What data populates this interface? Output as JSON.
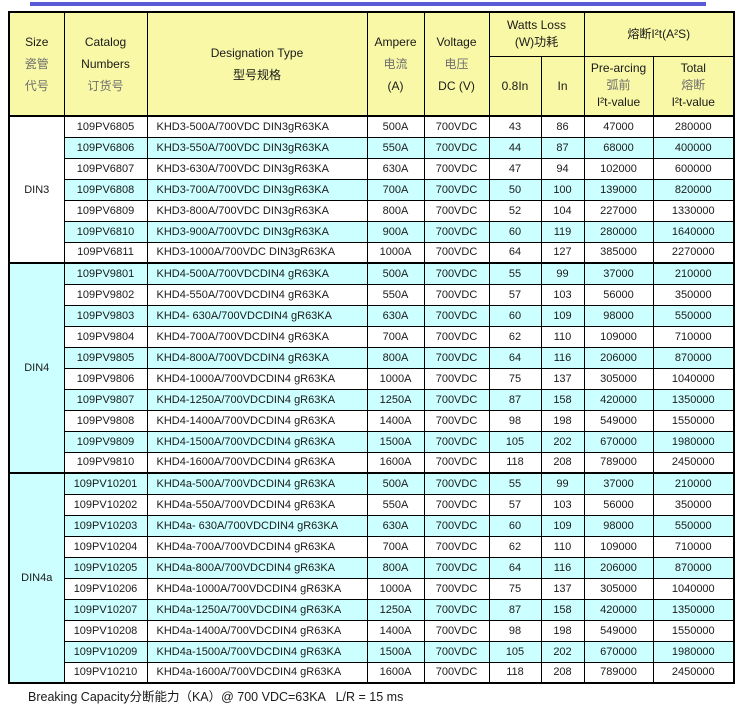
{
  "page": {
    "top_rule_color": "#5B5BD6",
    "header_bg_color": "#F8F8A6",
    "stripe_bg_color": "#CCFFFF",
    "border_color": "#000000"
  },
  "table": {
    "header": {
      "size": {
        "en": "Size",
        "zh1": "瓷管",
        "zh2": "代号"
      },
      "catalog": {
        "en1": "Catalog",
        "en2": "Numbers",
        "zh": "订货号"
      },
      "designation": {
        "en": "Designation Type",
        "zh": "型号规格"
      },
      "ampere": {
        "en": "Ampere",
        "zh": "电流",
        "unit": "(A)"
      },
      "voltage": {
        "en": "Voltage",
        "zh": "电压",
        "unit": "DC (V)"
      },
      "watts": {
        "title1": "Watts Loss",
        "title2": "(W)功耗",
        "sub1": "0.8In",
        "sub2": "In"
      },
      "i2t": {
        "title": "熔断I²t(A²S)",
        "pre1": "Pre-arcing",
        "pre2": "弧前",
        "pre3": "I²t-value",
        "tot1": "Total",
        "tot2": "熔断",
        "tot3": "I²t-value"
      }
    },
    "sections": [
      {
        "size": "DIN3",
        "rows": [
          [
            "109PV6805",
            "KHD3-500A/700VDC DIN3gR63KA",
            "500A",
            "700VDC",
            "43",
            "86",
            "47000",
            "280000"
          ],
          [
            "109PV6806",
            "KHD3-550A/700VDC DIN3gR63KA",
            "550A",
            "700VDC",
            "44",
            "87",
            "68000",
            "400000"
          ],
          [
            "109PV6807",
            "KHD3-630A/700VDC DIN3gR63KA",
            "630A",
            "700VDC",
            "47",
            "94",
            "102000",
            "600000"
          ],
          [
            "109PV6808",
            "KHD3-700A/700VDC DIN3gR63KA",
            "700A",
            "700VDC",
            "50",
            "100",
            "139000",
            "820000"
          ],
          [
            "109PV6809",
            "KHD3-800A/700VDC DIN3gR63KA",
            "800A",
            "700VDC",
            "52",
            "104",
            "227000",
            "1330000"
          ],
          [
            "109PV6810",
            "KHD3-900A/700VDC DIN3gR63KA",
            "900A",
            "700VDC",
            "60",
            "119",
            "280000",
            "1640000"
          ],
          [
            "109PV6811",
            "KHD3-1000A/700VDC DIN3gR63KA",
            "1000A",
            "700VDC",
            "64",
            "127",
            "385000",
            "2270000"
          ]
        ]
      },
      {
        "size": "DIN4",
        "rows": [
          [
            "109PV9801",
            "KHD4-500A/700VDCDIN4 gR63KA",
            "500A",
            "700VDC",
            "55",
            "99",
            "37000",
            "210000"
          ],
          [
            "109PV9802",
            "KHD4-550A/700VDCDIN4 gR63KA",
            "550A",
            "700VDC",
            "57",
            "103",
            "56000",
            "350000"
          ],
          [
            "109PV9803",
            "KHD4- 630A/700VDCDIN4 gR63KA",
            "630A",
            "700VDC",
            "60",
            "109",
            "98000",
            "550000"
          ],
          [
            "109PV9804",
            "KHD4-700A/700VDCDIN4 gR63KA",
            "700A",
            "700VDC",
            "62",
            "110",
            "109000",
            "710000"
          ],
          [
            "109PV9805",
            "KHD4-800A/700VDCDIN4 gR63KA",
            "800A",
            "700VDC",
            "64",
            "116",
            "206000",
            "870000"
          ],
          [
            "109PV9806",
            "KHD4-1000A/700VDCDIN4 gR63KA",
            "1000A",
            "700VDC",
            "75",
            "137",
            "305000",
            "1040000"
          ],
          [
            "109PV9807",
            "KHD4-1250A/700VDCDIN4 gR63KA",
            "1250A",
            "700VDC",
            "87",
            "158",
            "420000",
            "1350000"
          ],
          [
            "109PV9808",
            "KHD4-1400A/700VDCDIN4 gR63KA",
            "1400A",
            "700VDC",
            "98",
            "198",
            "549000",
            "1550000"
          ],
          [
            "109PV9809",
            "KHD4-1500A/700VDCDIN4 gR63KA",
            "1500A",
            "700VDC",
            "105",
            "202",
            "670000",
            "1980000"
          ],
          [
            "109PV9810",
            "KHD4-1600A/700VDCDIN4 gR63KA",
            "1600A",
            "700VDC",
            "118",
            "208",
            "789000",
            "2450000"
          ]
        ]
      },
      {
        "size": "DIN4a",
        "rows": [
          [
            "109PV10201",
            "KHD4a-500A/700VDCDIN4 gR63KA",
            "500A",
            "700VDC",
            "55",
            "99",
            "37000",
            "210000"
          ],
          [
            "109PV10202",
            "KHD4a-550A/700VDCDIN4 gR63KA",
            "550A",
            "700VDC",
            "57",
            "103",
            "56000",
            "350000"
          ],
          [
            "109PV10203",
            "KHD4a- 630A/700VDCDIN4 gR63KA",
            "630A",
            "700VDC",
            "60",
            "109",
            "98000",
            "550000"
          ],
          [
            "109PV10204",
            "KHD4a-700A/700VDCDIN4 gR63KA",
            "700A",
            "700VDC",
            "62",
            "110",
            "109000",
            "710000"
          ],
          [
            "109PV10205",
            "KHD4a-800A/700VDCDIN4 gR63KA",
            "800A",
            "700VDC",
            "64",
            "116",
            "206000",
            "870000"
          ],
          [
            "109PV10206",
            "KHD4a-1000A/700VDCDIN4 gR63KA",
            "1000A",
            "700VDC",
            "75",
            "137",
            "305000",
            "1040000"
          ],
          [
            "109PV10207",
            "KHD4a-1250A/700VDCDIN4 gR63KA",
            "1250A",
            "700VDC",
            "87",
            "158",
            "420000",
            "1350000"
          ],
          [
            "109PV10208",
            "KHD4a-1400A/700VDCDIN4 gR63KA",
            "1400A",
            "700VDC",
            "98",
            "198",
            "549000",
            "1550000"
          ],
          [
            "109PV10209",
            "KHD4a-1500A/700VDCDIN4 gR63KA",
            "1500A",
            "700VDC",
            "105",
            "202",
            "670000",
            "1980000"
          ],
          [
            "109PV10210",
            "KHD4a-1600A/700VDCDIN4 gR63KA",
            "1600A",
            "700VDC",
            "118",
            "208",
            "789000",
            "2450000"
          ]
        ]
      }
    ]
  },
  "footer": {
    "note": "Breaking Capacity分断能力（KA）@ 700 VDC=63KA   L/R = 15 ms"
  }
}
